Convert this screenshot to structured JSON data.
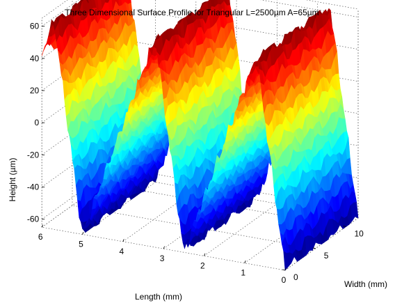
{
  "chart_data": {
    "type": "surface",
    "title": "Three Dimensional Surface Profile for Triangular L=2500µm A=65µm",
    "xlabel": "Length (mm)",
    "ylabel": "Width (mm)",
    "zlabel": "Height (µm)",
    "x_ticks": [
      6,
      5,
      4,
      3,
      2,
      1,
      0
    ],
    "y_ticks": [
      0,
      5,
      10
    ],
    "z_ticks": [
      60,
      40,
      20,
      0,
      -20,
      -40,
      -60
    ],
    "xlim": [
      0,
      6
    ],
    "ylim": [
      0,
      12
    ],
    "zlim": [
      -65,
      65
    ],
    "grid": true,
    "colormap": "jet",
    "profile": {
      "shape": "sawtooth",
      "period_mm": 2.5,
      "amplitude_um": 65,
      "peaks_at_length_mm": [
        5.7,
        3.2,
        0.7
      ],
      "valleys_at_length_mm": [
        5.0,
        2.5,
        0.0
      ]
    }
  }
}
